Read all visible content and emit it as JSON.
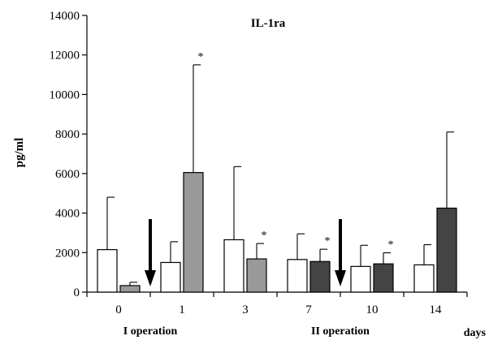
{
  "chart_data": {
    "type": "bar",
    "title": "IL-1ra",
    "ylabel": "pg/ml",
    "xlabel": "days",
    "ylim": [
      0,
      14000
    ],
    "yticks": [
      0,
      2000,
      4000,
      6000,
      8000,
      10000,
      12000,
      14000
    ],
    "categories": [
      "0",
      "1",
      "3",
      "7",
      "10",
      "14"
    ],
    "groups": [
      {
        "category": "0",
        "bars": [
          {
            "value": 2150,
            "error": 2650,
            "fill": "#ffffff"
          },
          {
            "value": 330,
            "error": 170,
            "fill": "#999999"
          }
        ]
      },
      {
        "category": "1",
        "bars": [
          {
            "value": 1500,
            "error": 1050,
            "fill": "#ffffff"
          },
          {
            "value": 6050,
            "error": 5450,
            "fill": "#999999",
            "star": "*"
          }
        ]
      },
      {
        "category": "3",
        "bars": [
          {
            "value": 2650,
            "error": 3700,
            "fill": "#ffffff"
          },
          {
            "value": 1680,
            "error": 780,
            "fill": "#999999",
            "star": "*"
          }
        ]
      },
      {
        "category": "7",
        "bars": [
          {
            "value": 1650,
            "error": 1300,
            "fill": "#ffffff"
          },
          {
            "value": 1550,
            "error": 620,
            "fill": "#444444",
            "star": "*"
          }
        ]
      },
      {
        "category": "10",
        "bars": [
          {
            "value": 1300,
            "error": 1070,
            "fill": "#ffffff"
          },
          {
            "value": 1430,
            "error": 560,
            "fill": "#444444",
            "star": "*"
          }
        ]
      },
      {
        "category": "14",
        "bars": [
          {
            "value": 1380,
            "error": 1020,
            "fill": "#ffffff"
          },
          {
            "value": 4250,
            "error": 3850,
            "fill": "#444444"
          }
        ]
      }
    ],
    "annotations": [
      {
        "text": "I operation",
        "arrow_between": [
          "0",
          "1"
        ]
      },
      {
        "text": "II operation",
        "arrow_between": [
          "7",
          "10"
        ]
      }
    ],
    "grid": false,
    "legend": "none"
  }
}
